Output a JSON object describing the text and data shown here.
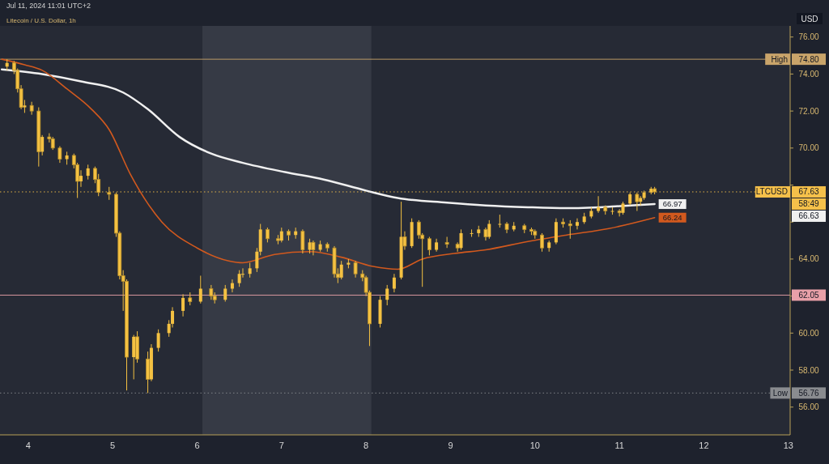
{
  "chart_data": {
    "type": "candlestick",
    "title": "Litecoin / U.S. Dollar, 1h",
    "subtitle": "Jul 11, 2024 11:01 UTC+2",
    "ylabel": "USD",
    "xlim": [
      "2024-07-03T16:00",
      "2024-07-13T00:30"
    ],
    "xticks": [
      {
        "value": "2024-07-04",
        "label": "4"
      },
      {
        "value": "2024-07-05",
        "label": "5"
      },
      {
        "value": "2024-07-06",
        "label": "6"
      },
      {
        "value": "2024-07-07",
        "label": "7"
      },
      {
        "value": "2024-07-08",
        "label": "8"
      },
      {
        "value": "2024-07-09",
        "label": "9"
      },
      {
        "value": "2024-07-10",
        "label": "10"
      },
      {
        "value": "2024-07-11",
        "label": "11"
      },
      {
        "value": "2024-07-12",
        "label": "12"
      },
      {
        "value": "2024-07-13",
        "label": "13"
      }
    ],
    "ylim": [
      54.5,
      76.6
    ],
    "yticks": [
      {
        "value": 56,
        "label": "56.00"
      },
      {
        "value": 58,
        "label": "58.00"
      },
      {
        "value": 60,
        "label": "60.00"
      },
      {
        "value": 62,
        "label": null
      },
      {
        "value": 64,
        "label": "64.00"
      },
      {
        "value": 66,
        "label": null
      },
      {
        "value": 68,
        "label": null
      },
      {
        "value": 70,
        "label": "70.00"
      },
      {
        "value": 72,
        "label": "72.00"
      },
      {
        "value": 74,
        "label": "74.00"
      },
      {
        "value": 76,
        "label": "76.00"
      }
    ],
    "grid": false,
    "bands": [
      {
        "axis": "x",
        "from": "2024-07-06T01:30",
        "to": "2024-07-08T01:30",
        "color": "#363a45"
      }
    ],
    "ref_lines": [
      {
        "axis": "y",
        "value": 74.8,
        "label": "High",
        "color": "#c9a46a",
        "line_style": "solid"
      },
      {
        "axis": "y",
        "value": 67.63,
        "label": "LTCUSD",
        "color": "#f5c04a",
        "line_style": "dotted"
      },
      {
        "axis": "y",
        "value": 62.05,
        "color": "#e8a0a8",
        "line_style": "solid"
      },
      {
        "axis": "y",
        "value": 56.76,
        "label": "Low",
        "color": "#8a8c90",
        "line_style": "dotted"
      }
    ],
    "annotations": [
      "58:49",
      "66.63",
      {
        "text": "74.80",
        "y": 74.8
      },
      {
        "text": "67.63",
        "y": 67.63
      },
      {
        "text": "62.05",
        "y": 62.05
      },
      {
        "text": "56.76",
        "y": 56.76
      }
    ],
    "series": [
      {
        "type": "line",
        "color": "#f0f0f0",
        "x": [
          "2024-07-03T16:30",
          "2024-07-04T04:00",
          "2024-07-04T15:00",
          "2024-07-05T03:00",
          "2024-07-05T10:00",
          "2024-07-05T19:00",
          "2024-07-06T04:00",
          "2024-07-06T13:00",
          "2024-07-07T01:00",
          "2024-07-07T12:00",
          "2024-07-08T00:00",
          "2024-07-08T09:00",
          "2024-07-08T23:00",
          "2024-07-09T10:00",
          "2024-07-09T22:00",
          "2024-07-10T09:00",
          "2024-07-10T23:00",
          "2024-07-11T10:00"
        ],
        "values": [
          74.25,
          74.0,
          73.6,
          73.0,
          72.1,
          70.6,
          69.7,
          69.2,
          68.7,
          68.3,
          67.7,
          67.3,
          67.05,
          66.9,
          66.8,
          66.75,
          66.85,
          66.97
        ],
        "value_labels": [
          null,
          null,
          null,
          null,
          null,
          null,
          null,
          null,
          null,
          null,
          null,
          null,
          null,
          null,
          null,
          null,
          null,
          "66.97"
        ]
      },
      {
        "type": "line",
        "color": "#d2591e",
        "x": [
          "2024-07-03T16:30",
          "2024-07-03T23:00",
          "2024-07-04T04:00",
          "2024-07-04T11:00",
          "2024-07-04T18:00",
          "2024-07-04T23:00",
          "2024-07-05T05:00",
          "2024-07-05T10:00",
          "2024-07-05T14:00",
          "2024-07-06T00:00",
          "2024-07-06T09:00",
          "2024-07-06T13:00",
          "2024-07-06T22:00",
          "2024-07-07T08:00",
          "2024-07-07T17:00",
          "2024-07-08T02:00",
          "2024-07-08T09:00",
          "2024-07-08T16:00",
          "2024-07-09T01:00",
          "2024-07-09T10:00",
          "2024-07-09T22:00",
          "2024-07-10T09:00",
          "2024-07-10T21:00",
          "2024-07-11T10:00"
        ],
        "values": [
          74.8,
          74.5,
          74.2,
          73.2,
          72.1,
          71.0,
          68.6,
          67.0,
          66.0,
          64.6,
          63.9,
          63.8,
          64.25,
          64.4,
          64.1,
          63.6,
          63.45,
          64.0,
          64.3,
          64.5,
          64.95,
          65.3,
          65.65,
          66.24
        ],
        "value_labels": [
          null,
          null,
          null,
          null,
          null,
          null,
          null,
          null,
          null,
          null,
          null,
          null,
          null,
          null,
          null,
          null,
          null,
          null,
          null,
          null,
          null,
          null,
          null,
          "66.24"
        ]
      },
      {
        "color": "#f4c142",
        "x": [
          "2024-07-03T18:00",
          "2024-07-03T20:00",
          "2024-07-03T21:00",
          "2024-07-03T22:00",
          "2024-07-03T23:00",
          "2024-07-04T01:00",
          "2024-07-04T03:00",
          "2024-07-04T04:00",
          "2024-07-04T06:00",
          "2024-07-04T07:00",
          "2024-07-04T09:00",
          "2024-07-04T11:00",
          "2024-07-04T13:00",
          "2024-07-04T14:00",
          "2024-07-04T15:00",
          "2024-07-04T17:00",
          "2024-07-04T19:00",
          "2024-07-04T20:00",
          "2024-07-04T23:00",
          "2024-07-05T01:00",
          "2024-07-05T02:00",
          "2024-07-05T03:00",
          "2024-07-05T04:00",
          "2024-07-05T06:00",
          "2024-07-05T07:00",
          "2024-07-05T10:00",
          "2024-07-05T11:00",
          "2024-07-05T13:00",
          "2024-07-05T16:00",
          "2024-07-05T17:00",
          "2024-07-05T20:00",
          "2024-07-05T22:00",
          "2024-07-06T01:00",
          "2024-07-06T04:00",
          "2024-07-06T05:00",
          "2024-07-06T08:00",
          "2024-07-06T10:00",
          "2024-07-06T12:00",
          "2024-07-06T13:00",
          "2024-07-06T15:00",
          "2024-07-06T17:00",
          "2024-07-06T18:00",
          "2024-07-06T20:00",
          "2024-07-06T23:00",
          "2024-07-07T00:00",
          "2024-07-07T02:00",
          "2024-07-07T04:00",
          "2024-07-07T06:00",
          "2024-07-07T08:00",
          "2024-07-07T09:00",
          "2024-07-07T11:00",
          "2024-07-07T13:00",
          "2024-07-07T15:00",
          "2024-07-07T16:00",
          "2024-07-07T17:00",
          "2024-07-07T19:00",
          "2024-07-07T21:00",
          "2024-07-07T23:00",
          "2024-07-08T00:00",
          "2024-07-08T01:00",
          "2024-07-08T04:00",
          "2024-07-08T06:00",
          "2024-07-08T08:00",
          "2024-07-08T10:00",
          "2024-07-08T11:00",
          "2024-07-08T13:00",
          "2024-07-08T15:00",
          "2024-07-08T16:00",
          "2024-07-08T18:00",
          "2024-07-08T20:00",
          "2024-07-08T23:00",
          "2024-07-09T02:00",
          "2024-07-09T03:00",
          "2024-07-09T06:00",
          "2024-07-09T08:00",
          "2024-07-09T10:00",
          "2024-07-09T11:00",
          "2024-07-09T14:00",
          "2024-07-09T16:00",
          "2024-07-09T18:00",
          "2024-07-09T21:00",
          "2024-07-09T23:00",
          "2024-07-10T00:00",
          "2024-07-10T02:00",
          "2024-07-10T04:00",
          "2024-07-10T06:00",
          "2024-07-10T08:00",
          "2024-07-10T10:00",
          "2024-07-10T12:00",
          "2024-07-10T14:00",
          "2024-07-10T16:00",
          "2024-07-10T18:00",
          "2024-07-10T20:00",
          "2024-07-10T22:00",
          "2024-07-11T00:00",
          "2024-07-11T01:00",
          "2024-07-11T03:00",
          "2024-07-11T05:00",
          "2024-07-11T06:00",
          "2024-07-11T07:00",
          "2024-07-11T09:00",
          "2024-07-11T10:00"
        ],
        "ohlc": [
          [
            74.4,
            74.8,
            74.2,
            74.6
          ],
          [
            74.6,
            74.7,
            74.0,
            74.2
          ],
          [
            74.2,
            74.3,
            73.0,
            73.2
          ],
          [
            73.2,
            73.4,
            72.1,
            72.2
          ],
          [
            72.2,
            72.6,
            71.9,
            72.3
          ],
          [
            72.3,
            72.5,
            71.8,
            72.0
          ],
          [
            72.0,
            72.2,
            69.0,
            69.8
          ],
          [
            69.8,
            70.7,
            69.6,
            70.6
          ],
          [
            70.6,
            70.8,
            70.3,
            70.5
          ],
          [
            70.5,
            70.6,
            69.9,
            70.0
          ],
          [
            70.0,
            70.1,
            69.2,
            69.4
          ],
          [
            69.4,
            69.8,
            69.1,
            69.6
          ],
          [
            69.6,
            69.7,
            68.9,
            69.1
          ],
          [
            69.1,
            69.2,
            67.3,
            68.2
          ],
          [
            68.2,
            68.8,
            67.9,
            68.5
          ],
          [
            68.5,
            69.1,
            68.3,
            68.9
          ],
          [
            68.9,
            69.0,
            68.1,
            68.3
          ],
          [
            68.3,
            68.6,
            67.4,
            67.6
          ],
          [
            67.6,
            67.9,
            67.2,
            67.5
          ],
          [
            67.5,
            67.6,
            65.2,
            65.4
          ],
          [
            65.4,
            65.5,
            62.9,
            63.1
          ],
          [
            63.1,
            63.4,
            61.2,
            62.8
          ],
          [
            62.8,
            62.9,
            56.9,
            58.7
          ],
          [
            58.7,
            59.9,
            57.5,
            59.8
          ],
          [
            59.8,
            60.1,
            58.4,
            58.6
          ],
          [
            58.6,
            59.0,
            56.76,
            57.5
          ],
          [
            57.5,
            59.4,
            57.4,
            59.2
          ],
          [
            59.2,
            60.2,
            59.0,
            60.0
          ],
          [
            60.0,
            60.7,
            59.8,
            60.5
          ],
          [
            60.5,
            61.4,
            60.3,
            61.2
          ],
          [
            61.2,
            62.1,
            60.9,
            61.9
          ],
          [
            61.9,
            62.2,
            61.5,
            61.7
          ],
          [
            61.7,
            63.1,
            61.6,
            62.4
          ],
          [
            62.4,
            62.6,
            61.8,
            62.0
          ],
          [
            62.0,
            62.2,
            61.6,
            61.8
          ],
          [
            61.8,
            62.6,
            61.7,
            62.4
          ],
          [
            62.4,
            62.9,
            62.2,
            62.7
          ],
          [
            62.7,
            63.4,
            62.5,
            63.2
          ],
          [
            63.2,
            63.5,
            63.0,
            63.2
          ],
          [
            63.2,
            63.8,
            63.0,
            63.5
          ],
          [
            63.5,
            64.6,
            63.3,
            64.4
          ],
          [
            64.4,
            65.9,
            64.2,
            65.6
          ],
          [
            65.6,
            65.7,
            64.9,
            65.1
          ],
          [
            65.1,
            65.3,
            64.8,
            65.0
          ],
          [
            65.0,
            65.7,
            64.9,
            65.5
          ],
          [
            65.5,
            65.6,
            65.0,
            65.3
          ],
          [
            65.3,
            65.7,
            65.1,
            65.5
          ],
          [
            65.5,
            65.6,
            64.3,
            64.5
          ],
          [
            64.5,
            65.1,
            64.3,
            64.9
          ],
          [
            64.9,
            65.0,
            64.2,
            64.5
          ],
          [
            64.5,
            65.0,
            64.4,
            64.8
          ],
          [
            64.8,
            64.9,
            64.4,
            64.6
          ],
          [
            64.6,
            64.7,
            63.0,
            63.2
          ],
          [
            63.2,
            63.5,
            62.7,
            63.0
          ],
          [
            63.0,
            63.9,
            62.9,
            63.7
          ],
          [
            63.7,
            64.0,
            63.5,
            63.8
          ],
          [
            63.8,
            63.9,
            63.0,
            63.2
          ],
          [
            63.2,
            63.4,
            62.8,
            63.0
          ],
          [
            63.0,
            63.1,
            62.0,
            62.2
          ],
          [
            62.2,
            62.3,
            59.3,
            60.5
          ],
          [
            60.5,
            62.0,
            60.3,
            61.8
          ],
          [
            61.8,
            62.6,
            61.5,
            62.4
          ],
          [
            62.4,
            63.2,
            62.2,
            63.0
          ],
          [
            63.0,
            67.1,
            62.9,
            65.2
          ],
          [
            65.2,
            65.5,
            64.5,
            64.7
          ],
          [
            64.7,
            66.2,
            64.6,
            66.0
          ],
          [
            66.0,
            66.1,
            65.1,
            65.3
          ],
          [
            65.3,
            65.4,
            62.5,
            65.1
          ],
          [
            65.1,
            65.2,
            64.2,
            64.5
          ],
          [
            64.5,
            65.1,
            64.4,
            64.9
          ],
          [
            64.9,
            65.2,
            64.6,
            64.8
          ],
          [
            64.8,
            64.9,
            64.4,
            64.6
          ],
          [
            64.6,
            65.6,
            64.5,
            65.4
          ],
          [
            65.4,
            65.6,
            65.2,
            65.4
          ],
          [
            65.4,
            65.8,
            65.2,
            65.6
          ],
          [
            65.6,
            65.7,
            65.0,
            65.2
          ],
          [
            65.2,
            66.1,
            65.1,
            65.9
          ],
          [
            65.9,
            66.4,
            65.7,
            65.9
          ],
          [
            65.9,
            66.0,
            65.4,
            65.6
          ],
          [
            65.6,
            66.0,
            65.5,
            65.8
          ],
          [
            65.8,
            65.9,
            65.4,
            65.6
          ],
          [
            65.6,
            65.7,
            65.3,
            65.5
          ],
          [
            65.5,
            65.6,
            65.1,
            65.3
          ],
          [
            65.3,
            65.4,
            64.4,
            64.6
          ],
          [
            64.6,
            65.0,
            64.4,
            64.9
          ],
          [
            64.9,
            66.2,
            64.8,
            66.0
          ],
          [
            66.0,
            66.2,
            65.7,
            65.9
          ],
          [
            65.9,
            66.1,
            65.1,
            65.8
          ],
          [
            65.8,
            66.2,
            65.6,
            66.0
          ],
          [
            66.0,
            66.5,
            65.9,
            66.3
          ],
          [
            66.3,
            66.8,
            66.2,
            66.6
          ],
          [
            66.6,
            67.4,
            66.5,
            66.8
          ],
          [
            66.8,
            66.9,
            66.4,
            66.6
          ],
          [
            66.6,
            66.8,
            66.4,
            66.6
          ],
          [
            66.6,
            66.7,
            66.3,
            66.5
          ],
          [
            66.5,
            67.1,
            66.4,
            67.0
          ],
          [
            67.0,
            67.6,
            66.9,
            67.5
          ],
          [
            67.5,
            67.6,
            66.6,
            67.1
          ],
          [
            67.1,
            67.4,
            66.9,
            67.3
          ],
          [
            67.3,
            67.7,
            67.2,
            67.6
          ],
          [
            67.6,
            67.9,
            67.5,
            67.8
          ],
          [
            67.8,
            67.9,
            67.5,
            67.63
          ]
        ]
      }
    ]
  }
}
